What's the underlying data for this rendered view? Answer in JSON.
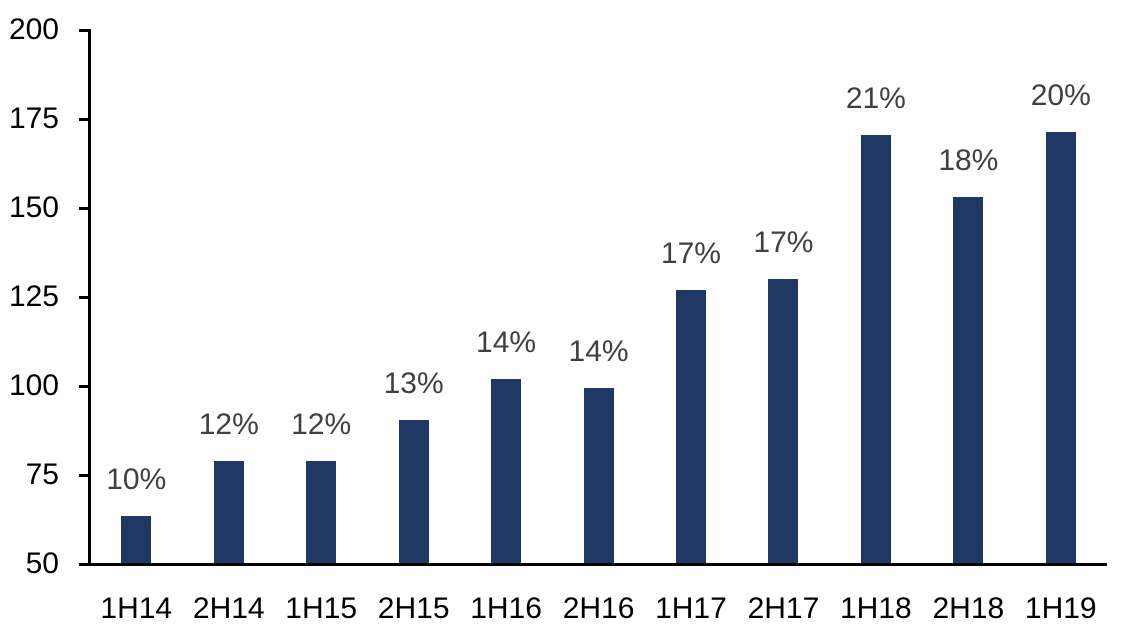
{
  "chart_data": {
    "type": "bar",
    "title": "",
    "xlabel": "",
    "ylabel": "",
    "categories": [
      "1H14",
      "2H14",
      "1H15",
      "2H15",
      "1H16",
      "2H16",
      "1H17",
      "2H17",
      "1H18",
      "2H18",
      "1H19"
    ],
    "values": [
      63.5,
      79,
      79,
      90.5,
      102,
      99.5,
      127,
      130,
      170.5,
      153,
      171.5
    ],
    "bar_labels": [
      "10%",
      "12%",
      "12%",
      "13%",
      "14%",
      "14%",
      "17%",
      "17%",
      "21%",
      "18%",
      "20%"
    ],
    "ylim": [
      50,
      200
    ],
    "y_ticks": [
      200,
      175,
      150,
      125,
      100,
      75,
      50
    ],
    "grid": false,
    "legend": false,
    "colors": {
      "bar": "#203864",
      "data_label": "#404040",
      "axis": "#000000",
      "tick_label": "#000000",
      "background": "#ffffff"
    }
  }
}
